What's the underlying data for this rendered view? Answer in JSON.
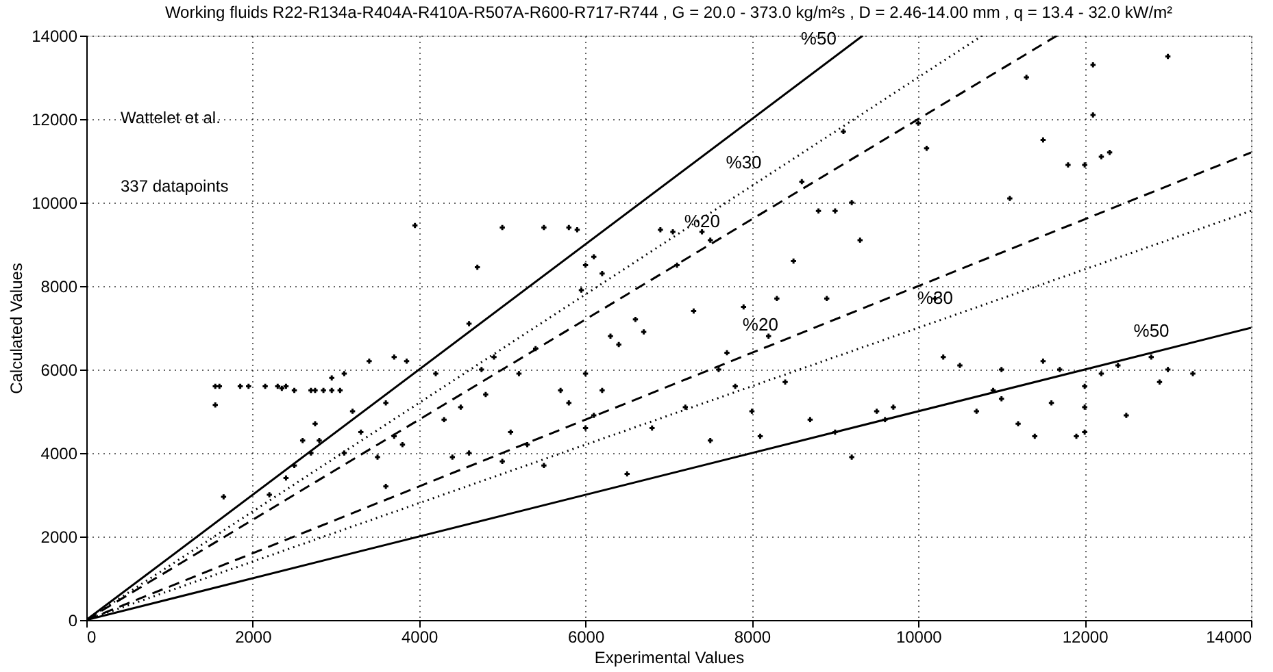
{
  "chart_data": {
    "type": "scatter",
    "title": "Working fluids R22-R134a-R404A-R410A-R507A-R600-R717-R744 , G = 20.0 - 373.0 kg/m²s , D = 2.46-14.00 mm , q = 13.4 - 32.0 kW/m²",
    "xlabel": "Experimental Values",
    "ylabel": "Calculated Values",
    "xlim": [
      0,
      14000
    ],
    "ylim": [
      0,
      14000
    ],
    "xticks": [
      0,
      2000,
      4000,
      6000,
      8000,
      10000,
      12000,
      14000
    ],
    "yticks": [
      0,
      2000,
      4000,
      6000,
      8000,
      10000,
      12000,
      14000
    ],
    "grid": true,
    "series": [
      {
        "marker": "cross",
        "color": "#000000",
        "x": [
          1550,
          1600,
          1550,
          1650,
          1850,
          1950,
          2150,
          2300,
          2400,
          2350,
          2500,
          2600,
          2700,
          2750,
          2850,
          2950,
          3050,
          2750,
          2700,
          2800,
          2500,
          2400,
          2950,
          3100,
          3200,
          3100,
          3300,
          3400,
          3500,
          3600,
          3700,
          3800,
          3850,
          3950,
          3700,
          3600,
          2200,
          4200,
          4300,
          4400,
          4500,
          4600,
          4700,
          4750,
          4800,
          4900,
          5000,
          5100,
          5200,
          5300,
          5400,
          5500,
          5500,
          5700,
          5800,
          5900,
          5950,
          6000,
          6100,
          6200,
          6300,
          6000,
          6100,
          6200,
          6400,
          6500,
          6600,
          6700,
          6900,
          7050,
          7100,
          7300,
          7400,
          7500,
          7600,
          7700,
          7800,
          8000,
          7900,
          8100,
          8200,
          8300,
          8400,
          8500,
          8600,
          8800,
          8900,
          9000,
          9100,
          9200,
          9300,
          8700,
          9000,
          9200,
          9500,
          9600,
          9700,
          10000,
          10100,
          10200,
          10300,
          10500,
          11000,
          11200,
          11400,
          11300,
          11500,
          11100,
          11700,
          11900,
          11800,
          12000,
          12100,
          12100,
          12200,
          12300,
          12000,
          12000,
          12000,
          12400,
          12500,
          12800,
          12900,
          13000,
          13000,
          13300,
          11600,
          10700,
          10900,
          11000,
          11500,
          12200,
          6000,
          5800,
          4600,
          5000,
          6800,
          7200,
          7500
        ],
        "values": [
          5600,
          5600,
          5150,
          2950,
          5600,
          5600,
          5600,
          5600,
          5600,
          5550,
          5500,
          4300,
          5500,
          5500,
          5500,
          5500,
          5500,
          4700,
          4000,
          4300,
          3700,
          3400,
          5800,
          5900,
          5000,
          4000,
          4500,
          6200,
          3900,
          5200,
          6300,
          4200,
          6200,
          9450,
          4400,
          3200,
          3000,
          5900,
          4800,
          3900,
          5100,
          7100,
          8450,
          6000,
          5400,
          6300,
          9400,
          4500,
          5900,
          4200,
          6500,
          3700,
          9400,
          5500,
          9400,
          9350,
          7900,
          8500,
          8700,
          8300,
          6800,
          5900,
          4900,
          5500,
          6600,
          3500,
          7200,
          6900,
          9350,
          9300,
          8500,
          7400,
          9300,
          9100,
          6000,
          6400,
          5600,
          5000,
          7500,
          4400,
          6800,
          7700,
          5700,
          8600,
          10500,
          9800,
          7700,
          9800,
          11700,
          10000,
          9100,
          4800,
          4500,
          3900,
          5000,
          4800,
          5100,
          11900,
          11300,
          7700,
          6300,
          6100,
          5300,
          4700,
          4400,
          13000,
          11500,
          10100,
          6000,
          4400,
          10900,
          10900,
          12100,
          13300,
          11100,
          11200,
          5600,
          5100,
          4500,
          6100,
          4900,
          6300,
          5700,
          13500,
          6000,
          5900,
          5200,
          5000,
          5500,
          6000,
          6200,
          5900,
          4600,
          5200,
          4000,
          3800,
          4600,
          5100,
          4300
        ]
      },
      {
        "type": "line",
        "color": "#000000",
        "line_style": "solid",
        "x": [
          0,
          9333
        ],
        "values": [
          0,
          14000
        ]
      },
      {
        "type": "line",
        "color": "#000000",
        "line_style": "dotted",
        "x": [
          0,
          10769
        ],
        "values": [
          0,
          14000
        ]
      },
      {
        "type": "line",
        "color": "#000000",
        "line_style": "dashed",
        "x": [
          0,
          11667
        ],
        "values": [
          0,
          14000
        ]
      },
      {
        "type": "line",
        "color": "#000000",
        "line_style": "dashed",
        "x": [
          0,
          14000
        ],
        "values": [
          0,
          11200
        ]
      },
      {
        "type": "line",
        "color": "#000000",
        "line_style": "dotted",
        "x": [
          0,
          14000
        ],
        "values": [
          0,
          9800
        ]
      },
      {
        "type": "line",
        "color": "#000000",
        "line_style": "solid",
        "x": [
          0,
          14000
        ],
        "values": [
          0,
          7000
        ]
      }
    ],
    "annotations": [
      {
        "text": "%50",
        "x": 9000,
        "y": 13500
      },
      {
        "text": "%30",
        "x": 8100,
        "y": 10530
      },
      {
        "text": "%20",
        "x": 7600,
        "y": 9120
      },
      {
        "text": "%20",
        "x": 8300,
        "y": 6640
      },
      {
        "text": "%30",
        "x": 10400,
        "y": 7280
      },
      {
        "text": "%50",
        "x": 13000,
        "y": 6500
      },
      "Wattelet et al.",
      "337 datapoints"
    ]
  }
}
